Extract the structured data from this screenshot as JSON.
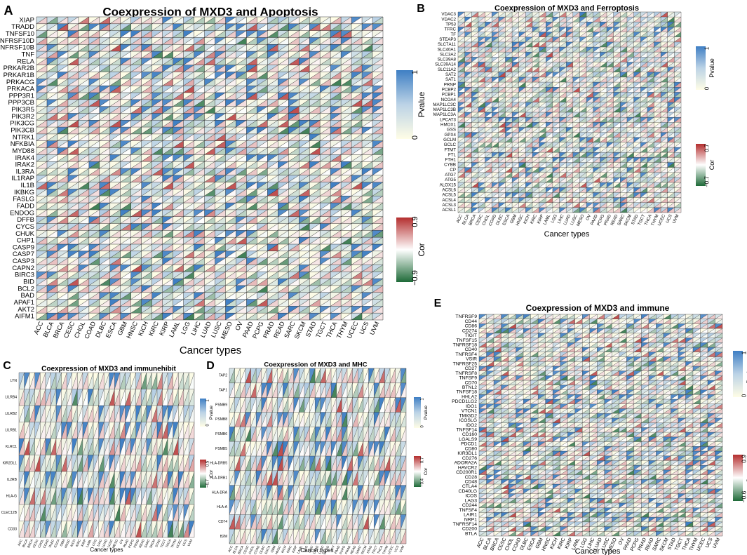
{
  "chart_data": [
    {
      "panel": "A",
      "type": "heatmap",
      "title": "Coexpression of MXD3 and Apoptosis",
      "xlabel": "Cancer types",
      "categories": [
        "ACC",
        "BLCA",
        "BRCA",
        "CESC",
        "CHOL",
        "COAD",
        "DLBC",
        "ESCA",
        "GBM",
        "HNSC",
        "KICH",
        "KIRC",
        "KIRP",
        "LAML",
        "LGG",
        "LIHC",
        "LUAD",
        "LUSC",
        "MESO",
        "OV",
        "PAAD",
        "PCPG",
        "PRAD",
        "READ",
        "SARC",
        "SKCM",
        "STAD",
        "TGCT",
        "THCA",
        "THYM",
        "UCEC",
        "UCS",
        "UVM"
      ],
      "genes": [
        "XIAP",
        "TRADD",
        "TNFSF10",
        "TNFRSF10D",
        "TNFRSF10B",
        "TNF",
        "RELA",
        "PRKAR2B",
        "PRKAR1B",
        "PRKACG",
        "PRKACA",
        "PPP3R1",
        "PPP3CB",
        "PIK3R5",
        "PIK3R2",
        "PIK3CG",
        "PIK3CB",
        "NTRK1",
        "NFKBIA",
        "MYD88",
        "IRAK4",
        "IRAK2",
        "IL3RA",
        "IL1RAP",
        "IL1B",
        "IKBKG",
        "FASLG",
        "FADD",
        "ENDOG",
        "DFFB",
        "CYCS",
        "CHUK",
        "CHP1",
        "CASP9",
        "CASP7",
        "CASP3",
        "CAPN2",
        "BIRC3",
        "BID",
        "BCL2",
        "BAD",
        "APAF1",
        "AKT2",
        "AIFM1"
      ],
      "legend_pvalue": {
        "title": "Pvalue",
        "ticks": [
          "1",
          "0"
        ]
      },
      "legend_cor": {
        "title": "Cor",
        "ticks": [
          "0.9",
          "−0.9"
        ]
      }
    },
    {
      "panel": "B",
      "type": "heatmap",
      "title": "Coexpression of MXD3 and Ferroptosis",
      "xlabel": "Cancer types",
      "categories": [
        "ACC",
        "BLCA",
        "BRCA",
        "CESC",
        "CHOL",
        "COAD",
        "DLBC",
        "ESCA",
        "GBM",
        "HNSC",
        "KICH",
        "KIRC",
        "KIRP",
        "LAML",
        "LGG",
        "LIHC",
        "LUAD",
        "LUSC",
        "MESO",
        "OV",
        "PAAD",
        "PCPG",
        "PRAD",
        "READ",
        "SARC",
        "SKCM",
        "STAD",
        "TGCT",
        "THCA",
        "THYM",
        "UCEC",
        "UCS",
        "UVM"
      ],
      "genes": [
        "VDAC3",
        "VDAC2",
        "TP53",
        "TFRC",
        "TF",
        "STEAP3",
        "SLC7A11",
        "SLC40A1",
        "SLC3A2",
        "SLC39A8",
        "SLC39A14",
        "SLC11A2",
        "SAT2",
        "SAT1",
        "PRNP",
        "PCBP2",
        "PCBP1",
        "NCOA4",
        "MAP1LC3C",
        "MAP1LC3B",
        "MAP1LC3A",
        "LPCAT3",
        "HMOX1",
        "GSS",
        "GPX4",
        "GCLM",
        "GCLC",
        "FTMT",
        "FTL",
        "FTH1",
        "CYBB",
        "CP",
        "ATG7",
        "ATG5",
        "ALOX15",
        "ACSL6",
        "ACSL5",
        "ACSL4",
        "ACSL3",
        "ACSL1"
      ],
      "legend_pvalue": {
        "title": "Pvalue",
        "ticks": [
          "1",
          "0"
        ]
      },
      "legend_cor": {
        "title": "Cor",
        "ticks": [
          "0.7",
          "−0.7"
        ]
      }
    },
    {
      "panel": "C",
      "type": "heatmap",
      "title": "Coexpression of MXD3 and immunehibit",
      "xlabel": "Cancer types",
      "categories": [
        "ACC",
        "BLCA",
        "BRCA",
        "CESC",
        "CHOL",
        "COAD",
        "DLBC",
        "ESCA",
        "GBM",
        "HNSC",
        "KICH",
        "KIRC",
        "KIRP",
        "LAML",
        "LGG",
        "LIHC",
        "LUAD",
        "LUSC",
        "MESO",
        "OV",
        "PAAD",
        "PCPG",
        "PRAD",
        "READ",
        "SARC",
        "SKCM",
        "STAD",
        "TGCT",
        "THCA",
        "THYM",
        "UCEC",
        "UCS",
        "UVM"
      ],
      "genes": [
        "LYN",
        "LILRB4",
        "LILRB2",
        "LILRB1",
        "KLRC1",
        "KIR2DL1",
        "IL2RB",
        "HLA-G",
        "CLEC12B",
        "CD33"
      ],
      "legend_pvalue": {
        "title": "Pvalue",
        "ticks": [
          "1",
          "0"
        ]
      },
      "legend_cor": {
        "title": "Cor",
        "ticks": [
          "0.5",
          "−0.7"
        ]
      }
    },
    {
      "panel": "D",
      "type": "heatmap",
      "title": "Coexpression of MXD3 and MHC",
      "xlabel": "Cancer types",
      "categories": [
        "ACC",
        "BLCA",
        "BRCA",
        "CESC",
        "CHOL",
        "COAD",
        "DLBC",
        "ESCA",
        "GBM",
        "HNSC",
        "KICH",
        "KIRC",
        "KIRP",
        "LAML",
        "LGG",
        "LIHC",
        "LUAD",
        "LUSC",
        "MESO",
        "OV",
        "PAAD",
        "PCPG",
        "PRAD",
        "READ",
        "SARC",
        "SKCM",
        "STAD",
        "TGCT",
        "THCA",
        "THYM",
        "UCEC",
        "UCS",
        "UVM"
      ],
      "genes": [
        "TAP2",
        "TAP1",
        "PSMB9",
        "PSMB8",
        "PSMB6",
        "PSMB5",
        "HLA-DRB5",
        "HLA-DRB1",
        "HLA-DRA",
        "HLA-A",
        "CD74",
        "B2M"
      ],
      "legend_pvalue": {
        "title": "Pvalue",
        "ticks": [
          "1",
          "0"
        ]
      },
      "legend_cor": {
        "title": "Cor",
        "ticks": [
          "0.7",
          "−0.4"
        ]
      }
    },
    {
      "panel": "E",
      "type": "heatmap",
      "title": "Coexpression of MXD3 and immune",
      "xlabel": "Cancer types",
      "categories": [
        "ACC",
        "BLCA",
        "BRCA",
        "CESC",
        "CHOL",
        "COAD",
        "DLBC",
        "ESCA",
        "GBM",
        "HNSC",
        "KICH",
        "KIRC",
        "KIRP",
        "LAML",
        "LGG",
        "LIHC",
        "LUAD",
        "LUSC",
        "MESO",
        "OV",
        "PAAD",
        "PCPG",
        "PRAD",
        "READ",
        "SARC",
        "SKCM",
        "STAD",
        "TGCT",
        "THCA",
        "THYM",
        "UCEC",
        "UCS",
        "UVM"
      ],
      "genes": [
        "TNFRSF9",
        "CD44",
        "CD86",
        "CD274",
        "TIGIT",
        "TNFSF15",
        "TNFRSF18",
        "CD40",
        "TNFRSF4",
        "VSIR",
        "TNFRSF25",
        "CD27",
        "TNFRSF8",
        "TNFSF9",
        "CD70",
        "BTNL2",
        "TNFSF18",
        "HHLA2",
        "PDCD1LG2",
        "IDO1",
        "VTCN1",
        "TMIGD2",
        "ICOSLG",
        "IDO2",
        "TNFSF14",
        "CD160",
        "LGALS9",
        "PDCD1",
        "CD80",
        "KIR3DL1",
        "CD276",
        "ADORA2A",
        "HAVCR2",
        "CD200R1",
        "CD28",
        "CD48",
        "CTLA4",
        "CD40LG",
        "ICOS",
        "LAG3",
        "CD244",
        "TNFSF4",
        "LAIR1",
        "NRP1",
        "TNFRSF14",
        "CD200",
        "BTLA"
      ],
      "legend_pvalue": {
        "title": "Pvalue",
        "ticks": [
          "1",
          "0"
        ]
      },
      "legend_cor": {
        "title": "Cor",
        "ticks": [
          "0.9",
          "−0.6"
        ]
      }
    }
  ]
}
